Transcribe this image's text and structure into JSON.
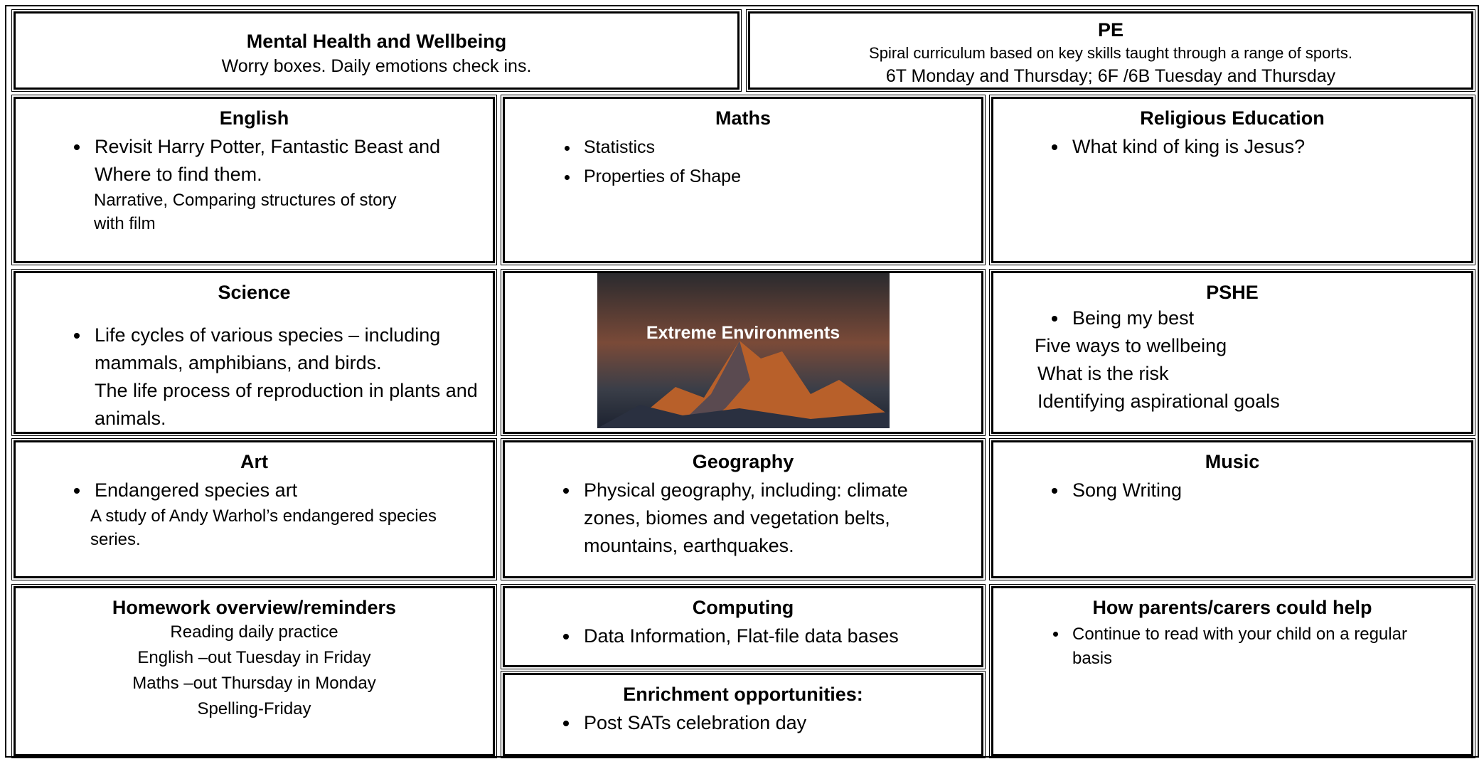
{
  "mental_health": {
    "title": "Mental Health and Wellbeing",
    "text": "Worry boxes. Daily emotions check ins."
  },
  "pe": {
    "title": "PE",
    "lines": [
      "Spiral curriculum based on key skills taught through a range of sports.",
      "6T Monday and Thursday; 6F /6B Tuesday and Thursday"
    ]
  },
  "english": {
    "title": "English",
    "bullets": [
      "Revisit Harry Potter, Fantastic Beast and Where to find them."
    ],
    "note": "Narrative, Comparing structures of story with film"
  },
  "maths": {
    "title": "Maths",
    "bullets": [
      "Statistics",
      "Properties of Shape"
    ]
  },
  "religious_education": {
    "title": "Religious Education",
    "bullets": [
      "What kind of king is Jesus?"
    ]
  },
  "science": {
    "title": "Science",
    "bullets": [
      "Life cycles of various species – including mammals, amphibians, and birds."
    ],
    "note": "The life process of reproduction in plants and animals."
  },
  "topic_image": {
    "caption": "Extreme Environments"
  },
  "pshe": {
    "title": "PSHE",
    "bullets": [
      "Being my best"
    ],
    "lines": [
      "Five ways to wellbeing",
      "What is the risk",
      "Identifying aspirational goals"
    ]
  },
  "art": {
    "title": "Art",
    "bullets": [
      "Endangered species art"
    ],
    "note": "A study of  Andy Warhol’s endangered species series."
  },
  "geography": {
    "title": "Geography",
    "bullets": [
      "Physical geography, including: climate zones, biomes and vegetation belts, mountains, earthquakes."
    ]
  },
  "music": {
    "title": "Music",
    "bullets": [
      "Song Writing"
    ]
  },
  "homework": {
    "title": "Homework overview/reminders",
    "lines": [
      "Reading daily practice",
      "English –out Tuesday in Friday",
      "Maths –out Thursday in Monday",
      "Spelling-Friday"
    ]
  },
  "computing": {
    "title": "Computing",
    "bullets": [
      "Data Information, Flat-file data  bases"
    ]
  },
  "enrichment": {
    "title": "Enrichment opportunities:",
    "bullets": [
      "Post SATs celebration day"
    ]
  },
  "parents": {
    "title": "How parents/carers could help",
    "bullets": [
      "Continue to read with your child on a regular basis"
    ]
  }
}
